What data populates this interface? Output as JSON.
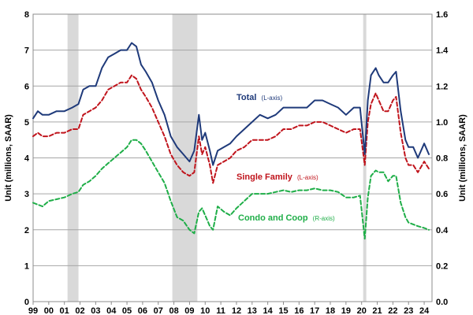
{
  "chart_data": {
    "type": "line",
    "title": "",
    "ylabel_left": "Unit (millions, SAAR)",
    "ylabel_right": "Unit (millions, SAAR)",
    "ylim_left": [
      0,
      8
    ],
    "ylim_right": [
      0,
      1.6
    ],
    "yticks_left": [
      "0",
      "1",
      "2",
      "3",
      "4",
      "5",
      "6",
      "7",
      "8"
    ],
    "yticks_right": [
      "0.0",
      "0.2",
      "0.4",
      "0.6",
      "0.8",
      "1.0",
      "1.2",
      "1.4",
      "1.6"
    ],
    "xlim": [
      1999,
      2024.5
    ],
    "xticks": [
      "99",
      "00",
      "01",
      "02",
      "03",
      "04",
      "05",
      "06",
      "07",
      "08",
      "09",
      "10",
      "11",
      "12",
      "13",
      "14",
      "15",
      "16",
      "17",
      "18",
      "19",
      "20",
      "21",
      "22",
      "23",
      "24"
    ],
    "grid": true,
    "recessions": [
      [
        2001.2,
        2001.9
      ],
      [
        2007.9,
        2009.5
      ],
      [
        2020.1,
        2020.3
      ]
    ],
    "series": [
      {
        "name": "Total",
        "axis_note": "(L-axis)",
        "axis": "left",
        "color": "#1f3a7a",
        "style": "solid",
        "x": [
          1999.0,
          1999.3,
          1999.6,
          2000.0,
          2000.5,
          2001.0,
          2001.5,
          2001.9,
          2002.2,
          2002.6,
          2003.0,
          2003.4,
          2003.8,
          2004.2,
          2004.6,
          2005.0,
          2005.3,
          2005.6,
          2005.9,
          2006.2,
          2006.6,
          2007.0,
          2007.4,
          2007.8,
          2008.2,
          2008.6,
          2009.0,
          2009.3,
          2009.6,
          2009.8,
          2010.0,
          2010.3,
          2010.5,
          2010.8,
          2011.2,
          2011.6,
          2012.0,
          2012.5,
          2013.0,
          2013.5,
          2014.0,
          2014.5,
          2015.0,
          2015.5,
          2016.0,
          2016.5,
          2017.0,
          2017.5,
          2018.0,
          2018.5,
          2019.0,
          2019.5,
          2019.9,
          2020.2,
          2020.4,
          2020.6,
          2020.9,
          2021.1,
          2021.4,
          2021.7,
          2022.0,
          2022.2,
          2022.5,
          2022.8,
          2023.0,
          2023.3,
          2023.6,
          2024.0,
          2024.3
        ],
        "values": [
          5.1,
          5.3,
          5.2,
          5.2,
          5.3,
          5.3,
          5.4,
          5.5,
          5.9,
          6.0,
          6.0,
          6.5,
          6.8,
          6.9,
          7.0,
          7.0,
          7.2,
          7.1,
          6.6,
          6.4,
          6.1,
          5.6,
          5.2,
          4.6,
          4.3,
          4.1,
          3.9,
          4.2,
          5.2,
          4.5,
          4.7,
          4.2,
          3.8,
          4.2,
          4.3,
          4.4,
          4.6,
          4.8,
          5.0,
          5.2,
          5.1,
          5.2,
          5.4,
          5.4,
          5.4,
          5.4,
          5.6,
          5.6,
          5.5,
          5.4,
          5.2,
          5.4,
          5.4,
          4.1,
          5.6,
          6.3,
          6.5,
          6.3,
          6.1,
          6.1,
          6.3,
          6.4,
          5.3,
          4.5,
          4.3,
          4.3,
          4.0,
          4.4,
          4.1
        ]
      },
      {
        "name": "Single Family",
        "axis_note": "(L-axis)",
        "axis": "left",
        "color": "#c0141c",
        "style": "dashed",
        "x": [
          1999.0,
          1999.3,
          1999.6,
          2000.0,
          2000.5,
          2001.0,
          2001.5,
          2001.9,
          2002.2,
          2002.6,
          2003.0,
          2003.4,
          2003.8,
          2004.2,
          2004.6,
          2005.0,
          2005.3,
          2005.6,
          2005.9,
          2006.2,
          2006.6,
          2007.0,
          2007.4,
          2007.8,
          2008.2,
          2008.6,
          2009.0,
          2009.3,
          2009.6,
          2009.8,
          2010.0,
          2010.3,
          2010.5,
          2010.8,
          2011.2,
          2011.6,
          2012.0,
          2012.5,
          2013.0,
          2013.5,
          2014.0,
          2014.5,
          2015.0,
          2015.5,
          2016.0,
          2016.5,
          2017.0,
          2017.5,
          2018.0,
          2018.5,
          2019.0,
          2019.5,
          2019.9,
          2020.2,
          2020.4,
          2020.6,
          2020.9,
          2021.1,
          2021.4,
          2021.7,
          2022.0,
          2022.2,
          2022.5,
          2022.8,
          2023.0,
          2023.3,
          2023.6,
          2024.0,
          2024.3
        ],
        "values": [
          4.6,
          4.7,
          4.6,
          4.6,
          4.7,
          4.7,
          4.8,
          4.8,
          5.2,
          5.3,
          5.4,
          5.6,
          5.9,
          6.0,
          6.1,
          6.1,
          6.3,
          6.2,
          5.9,
          5.7,
          5.4,
          5.0,
          4.6,
          4.1,
          3.8,
          3.6,
          3.5,
          3.6,
          4.6,
          4.1,
          4.3,
          3.8,
          3.3,
          3.8,
          3.9,
          4.0,
          4.2,
          4.3,
          4.5,
          4.5,
          4.5,
          4.6,
          4.8,
          4.8,
          4.9,
          4.9,
          5.0,
          5.0,
          4.9,
          4.8,
          4.7,
          4.8,
          4.8,
          3.8,
          5.0,
          5.5,
          5.8,
          5.6,
          5.3,
          5.3,
          5.6,
          5.7,
          4.7,
          4.0,
          3.8,
          3.8,
          3.6,
          3.9,
          3.7
        ]
      },
      {
        "name": "Condo and Coop",
        "axis_note": "(R-axis)",
        "axis": "right",
        "color": "#1fae48",
        "style": "dashed",
        "x": [
          1999.0,
          1999.3,
          1999.6,
          2000.0,
          2000.5,
          2001.0,
          2001.5,
          2001.9,
          2002.2,
          2002.6,
          2003.0,
          2003.4,
          2003.8,
          2004.2,
          2004.6,
          2005.0,
          2005.3,
          2005.6,
          2005.9,
          2006.2,
          2006.6,
          2007.0,
          2007.4,
          2007.8,
          2008.2,
          2008.6,
          2009.0,
          2009.3,
          2009.6,
          2009.8,
          2010.0,
          2010.3,
          2010.5,
          2010.8,
          2011.2,
          2011.6,
          2012.0,
          2012.5,
          2013.0,
          2013.5,
          2014.0,
          2014.5,
          2015.0,
          2015.5,
          2016.0,
          2016.5,
          2017.0,
          2017.5,
          2018.0,
          2018.5,
          2019.0,
          2019.5,
          2019.9,
          2020.2,
          2020.4,
          2020.6,
          2020.9,
          2021.1,
          2021.4,
          2021.7,
          2022.0,
          2022.2,
          2022.5,
          2022.8,
          2023.0,
          2023.3,
          2023.6,
          2024.0,
          2024.3
        ],
        "values": [
          0.55,
          0.54,
          0.53,
          0.56,
          0.57,
          0.58,
          0.6,
          0.61,
          0.65,
          0.67,
          0.7,
          0.74,
          0.77,
          0.8,
          0.83,
          0.86,
          0.9,
          0.9,
          0.88,
          0.84,
          0.78,
          0.72,
          0.66,
          0.56,
          0.47,
          0.45,
          0.4,
          0.38,
          0.5,
          0.52,
          0.48,
          0.42,
          0.4,
          0.53,
          0.5,
          0.48,
          0.52,
          0.56,
          0.6,
          0.6,
          0.6,
          0.61,
          0.62,
          0.61,
          0.62,
          0.62,
          0.63,
          0.62,
          0.62,
          0.61,
          0.58,
          0.58,
          0.59,
          0.35,
          0.58,
          0.7,
          0.73,
          0.72,
          0.72,
          0.67,
          0.7,
          0.7,
          0.55,
          0.47,
          0.44,
          0.43,
          0.42,
          0.41,
          0.4
        ]
      }
    ],
    "annotations": [
      {
        "main": "Total",
        "note": "(L-axis)",
        "color": "#1f3a7a"
      },
      {
        "main": "Single Family",
        "note": "(L-axis)",
        "color": "#c0141c"
      },
      {
        "main": "Condo and Coop",
        "note": "(R-axis)",
        "color": "#1fae48"
      }
    ]
  }
}
